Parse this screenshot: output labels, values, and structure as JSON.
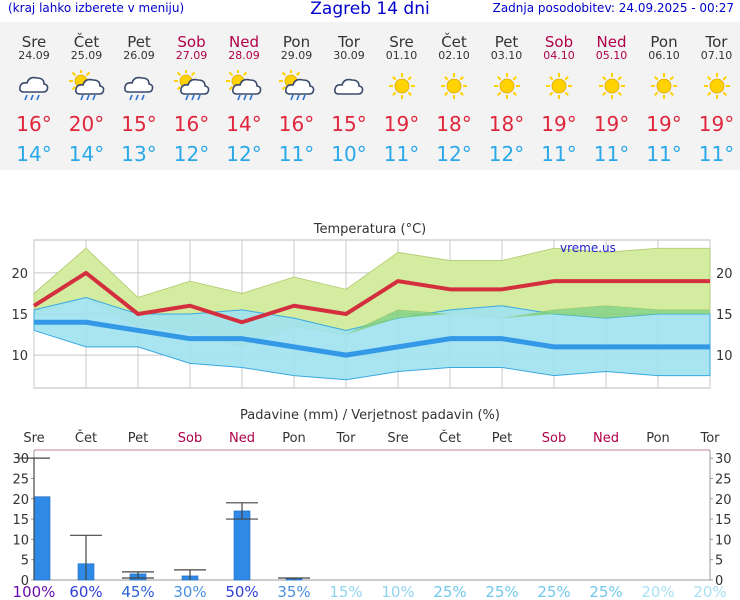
{
  "header": {
    "left_note": "(kraj lahko izberete v meniju)",
    "title": "Zagreb 14 dni",
    "updated": "Zadnja posodobitev: 24.09.2025 - 00:27"
  },
  "days": [
    {
      "name": "Sre",
      "date": "24.09",
      "weekend": false,
      "icon": "rain-cloud-icon",
      "high": "16°",
      "low": "14°"
    },
    {
      "name": "Čet",
      "date": "25.09",
      "weekend": false,
      "icon": "sun-cloud-rain-icon",
      "high": "20°",
      "low": "14°"
    },
    {
      "name": "Pet",
      "date": "26.09",
      "weekend": false,
      "icon": "rain-cloud-icon",
      "high": "15°",
      "low": "13°"
    },
    {
      "name": "Sob",
      "date": "27.09",
      "weekend": true,
      "icon": "sun-cloud-rain-icon",
      "high": "16°",
      "low": "12°"
    },
    {
      "name": "Ned",
      "date": "28.09",
      "weekend": true,
      "icon": "sun-cloud-rain-icon",
      "high": "14°",
      "low": "12°"
    },
    {
      "name": "Pon",
      "date": "29.09",
      "weekend": false,
      "icon": "sun-cloud-rain-icon",
      "high": "16°",
      "low": "11°"
    },
    {
      "name": "Tor",
      "date": "30.09",
      "weekend": false,
      "icon": "cloud-icon",
      "high": "15°",
      "low": "10°"
    },
    {
      "name": "Sre",
      "date": "01.10",
      "weekend": false,
      "icon": "sun-icon",
      "high": "19°",
      "low": "11°"
    },
    {
      "name": "Čet",
      "date": "02.10",
      "weekend": false,
      "icon": "sun-icon",
      "high": "18°",
      "low": "12°"
    },
    {
      "name": "Pet",
      "date": "03.10",
      "weekend": false,
      "icon": "sun-icon",
      "high": "18°",
      "low": "12°"
    },
    {
      "name": "Sob",
      "date": "04.10",
      "weekend": true,
      "icon": "sun-icon",
      "high": "19°",
      "low": "11°"
    },
    {
      "name": "Ned",
      "date": "05.10",
      "weekend": true,
      "icon": "sun-icon",
      "high": "19°",
      "low": "11°"
    },
    {
      "name": "Pon",
      "date": "06.10",
      "weekend": false,
      "icon": "sun-icon",
      "high": "19°",
      "low": "11°"
    },
    {
      "name": "Tor",
      "date": "07.10",
      "weekend": false,
      "icon": "sun-icon",
      "high": "19°",
      "low": "11°"
    }
  ],
  "colors": {
    "high": "#e0263d",
    "low": "#2aa8e8",
    "weekend": "#b0004a",
    "temp_max_line": "#d42f3f",
    "temp_min_line": "#3399e6",
    "max_band": "#d4eca0",
    "min_band": "#9fe2f0",
    "overlap": "#7fd07a",
    "precip_bar": "#2e8ae6",
    "sun": "#ffd200"
  },
  "chart_data": [
    {
      "type": "line",
      "title": "Temperatura (°C)",
      "watermark": "vreme.us",
      "categories": [
        "Sre",
        "Čet",
        "Pet",
        "Sob",
        "Ned",
        "Pon",
        "Tor",
        "Sre",
        "Čet",
        "Pet",
        "Sob",
        "Ned",
        "Pon",
        "Tor"
      ],
      "ylim": [
        6,
        24
      ],
      "yticks": [
        10,
        15,
        20
      ],
      "grid": true,
      "series": [
        {
          "key": "max",
          "values": [
            16,
            20,
            15,
            16,
            14,
            16,
            15,
            19,
            18,
            18,
            19,
            19,
            19,
            19
          ],
          "band_upper": [
            17.5,
            23,
            17,
            19,
            17.5,
            19.5,
            18,
            22.5,
            21.5,
            21.5,
            23,
            22.5,
            23,
            23
          ],
          "band_lower": [
            15,
            17,
            13.5,
            13,
            11,
            13.5,
            12.5,
            15.5,
            15,
            14.5,
            15.5,
            16,
            15.5,
            15.5
          ]
        },
        {
          "key": "min",
          "values": [
            14,
            14,
            13,
            12,
            12,
            11,
            10,
            11,
            12,
            12,
            11,
            11,
            11,
            11
          ],
          "band_upper": [
            15.5,
            17,
            15,
            15,
            15.5,
            14.5,
            13,
            14.5,
            15.5,
            16,
            15,
            14.5,
            15,
            15
          ],
          "band_lower": [
            13,
            11,
            11,
            9,
            8.5,
            7.5,
            7,
            8,
            8.5,
            8.5,
            7.5,
            8,
            7.5,
            7.5
          ]
        }
      ]
    },
    {
      "type": "bar",
      "title": "Padavine (mm) / Verjetnost padavin (%)",
      "categories": [
        "Sre",
        "Čet",
        "Pet",
        "Sob",
        "Ned",
        "Pon",
        "Tor",
        "Sre",
        "Čet",
        "Pet",
        "Sob",
        "Ned",
        "Pon",
        "Tor"
      ],
      "ylim": [
        0,
        32
      ],
      "yticks": [
        0,
        5,
        10,
        15,
        20,
        25,
        30
      ],
      "values": [
        20.5,
        4,
        1.5,
        1,
        17,
        0.3,
        0,
        0,
        0,
        0,
        0,
        0,
        0,
        0
      ],
      "err_low": [
        0,
        0,
        0.5,
        0,
        15,
        0,
        0,
        0,
        0,
        0,
        0,
        0,
        0,
        0
      ],
      "err_high": [
        30,
        11,
        2,
        2.5,
        19,
        0.5,
        0,
        0,
        0,
        0,
        0,
        0,
        0,
        0
      ],
      "probability": [
        "100%",
        "60%",
        "45%",
        "30%",
        "50%",
        "35%",
        "15%",
        "10%",
        "25%",
        "25%",
        "25%",
        "25%",
        "20%",
        "20%"
      ],
      "probability_colors": [
        "#6a0dad",
        "#2f3fd6",
        "#2a64d8",
        "#4a8fe0",
        "#2f3fd6",
        "#4a8fe0",
        "#8fd6f0",
        "#8fd6f0",
        "#6fc8ec",
        "#6fc8ec",
        "#6fc8ec",
        "#6fc8ec",
        "#a8e0f4",
        "#a8e0f4"
      ]
    }
  ]
}
